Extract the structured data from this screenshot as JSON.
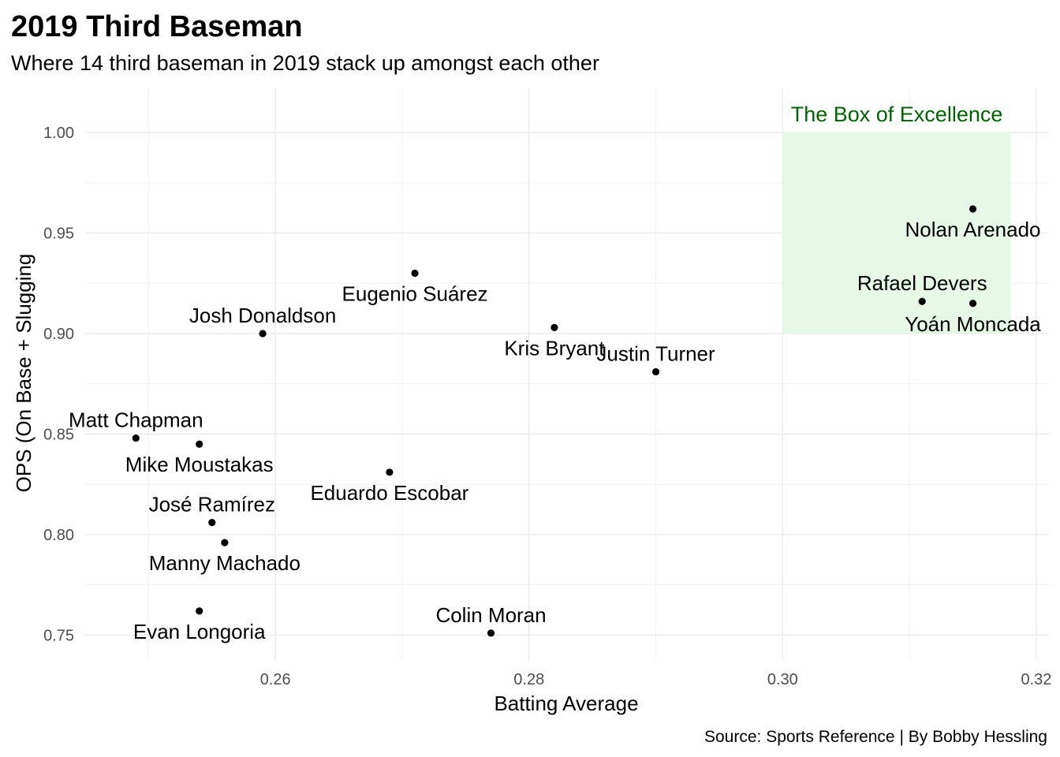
{
  "chart_data": {
    "type": "scatter",
    "title": "2019 Third Baseman",
    "subtitle": "Where 14 third baseman in 2019 stack up amongst each other",
    "xlabel": "Batting Average",
    "ylabel": "OPS (On Base + Slugging",
    "caption": "Source: Sports Reference | By Bobby Hessling",
    "xlim": [
      0.245,
      0.321
    ],
    "ylim": [
      0.738,
      1.022
    ],
    "x_ticks": [
      0.26,
      0.28,
      0.3,
      0.32
    ],
    "x_tick_labels": [
      "0.26",
      "0.28",
      "0.30",
      "0.32"
    ],
    "y_ticks": [
      0.75,
      0.8,
      0.85,
      0.9,
      0.95,
      1.0
    ],
    "y_tick_labels": [
      "0.75",
      "0.80",
      "0.85",
      "0.90",
      "0.95",
      "1.00"
    ],
    "grid": true,
    "point_color": "#000000",
    "highlight_box": {
      "label": "The Box of Excellence",
      "x": [
        0.3,
        0.318
      ],
      "y": [
        0.9,
        1.0
      ],
      "fill_color": "#e6f9e6",
      "label_color": "#006400"
    },
    "points": [
      {
        "name": "Nolan Arenado",
        "x": 0.315,
        "y": 0.962,
        "label_pos": "below"
      },
      {
        "name": "Rafael Devers",
        "x": 0.311,
        "y": 0.916,
        "label_pos": "above"
      },
      {
        "name": "Yoán Moncada",
        "x": 0.315,
        "y": 0.915,
        "label_pos": "below"
      },
      {
        "name": "Eugenio Suárez",
        "x": 0.271,
        "y": 0.93,
        "label_pos": "below"
      },
      {
        "name": "Josh Donaldson",
        "x": 0.259,
        "y": 0.9,
        "label_pos": "above"
      },
      {
        "name": "Kris Bryant",
        "x": 0.282,
        "y": 0.903,
        "label_pos": "below"
      },
      {
        "name": "Justin Turner",
        "x": 0.29,
        "y": 0.881,
        "label_pos": "above"
      },
      {
        "name": "Matt Chapman",
        "x": 0.249,
        "y": 0.848,
        "label_pos": "above"
      },
      {
        "name": "Mike Moustakas",
        "x": 0.254,
        "y": 0.845,
        "label_pos": "below"
      },
      {
        "name": "Eduardo Escobar",
        "x": 0.269,
        "y": 0.831,
        "label_pos": "below"
      },
      {
        "name": "José Ramírez",
        "x": 0.255,
        "y": 0.806,
        "label_pos": "above"
      },
      {
        "name": "Manny Machado",
        "x": 0.256,
        "y": 0.796,
        "label_pos": "below"
      },
      {
        "name": "Evan Longoria",
        "x": 0.254,
        "y": 0.762,
        "label_pos": "below"
      },
      {
        "name": "Colin Moran",
        "x": 0.277,
        "y": 0.751,
        "label_pos": "above"
      }
    ]
  }
}
